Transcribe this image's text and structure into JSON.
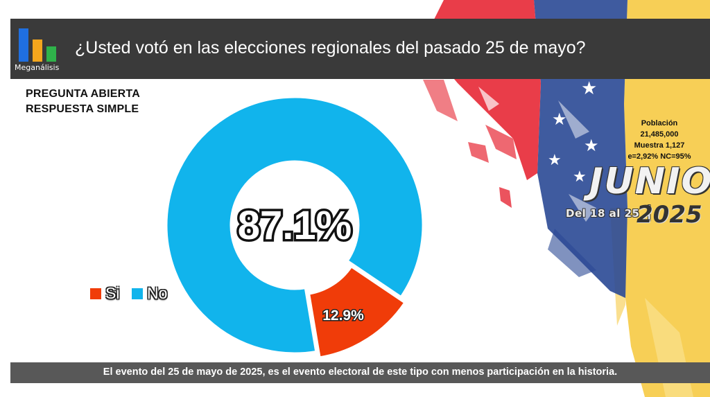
{
  "header": {
    "logo_text": "Meganálisis",
    "title": "¿Usted votó en las elecciones regionales del pasado 25 de mayo?"
  },
  "subtitle": {
    "line1": "PREGUNTA ABIERTA",
    "line2": "RESPUESTA SIMPLE"
  },
  "poll_info": {
    "line1": "Población",
    "line2": "21,485,000",
    "line3": "Muestra 1,127",
    "line4": "e=2,92%  NC=95%"
  },
  "badge": {
    "month": "JUNIO",
    "range_prefix": "Del",
    "range_from": "18",
    "range_mid": "al",
    "range_to": "25",
    "year": "2025"
  },
  "footer": {
    "text": "El evento del 25 de mayo de 2025, es el evento electoral de este tipo con menos participación en la historia."
  },
  "colors": {
    "si": "#f03c09",
    "no": "#11b4ec",
    "header_bg": "#3a3a3a",
    "footer_bg": "#585858",
    "flag_yellow": "#f6c83a",
    "flag_blue": "#1f3f8f",
    "flag_red": "#e51d2a"
  },
  "chart_data": {
    "type": "pie",
    "categories": [
      "Si",
      "No"
    ],
    "values": [
      12.9,
      87.1
    ],
    "labels": [
      "12.9%",
      "87.1%"
    ],
    "legend_placement": "left"
  }
}
